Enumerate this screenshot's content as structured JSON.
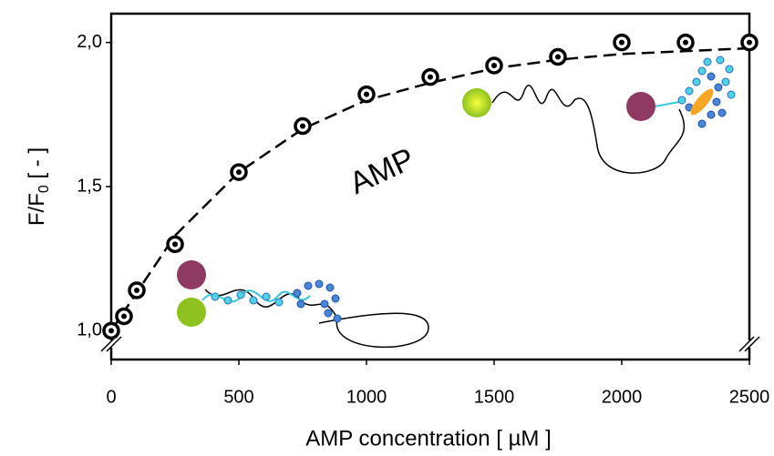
{
  "chart_data": {
    "type": "scatter",
    "xlabel": "AMP concentration [ µM ]",
    "ylabel": "F/F",
    "ylabel_subscript": "0",
    "ylabel_suffix": " [ - ]",
    "annotation": "AMP",
    "xlim": [
      0,
      2500
    ],
    "xticks": [
      0,
      500,
      1000,
      1500,
      2000,
      2500
    ],
    "ylim": [
      0.9,
      2.1
    ],
    "yticks": [
      {
        "value": 1.0,
        "label": "1,0"
      },
      {
        "value": 1.5,
        "label": "1,5"
      },
      {
        "value": 2.0,
        "label": "2,0"
      }
    ],
    "series": [
      {
        "style": "markers",
        "color": "#000000",
        "x": [
          0,
          50,
          100,
          250,
          500,
          750,
          1000,
          1250,
          1500,
          1750,
          2000,
          2250,
          2500
        ],
        "values": [
          1.0,
          1.05,
          1.14,
          1.3,
          1.55,
          1.71,
          1.82,
          1.88,
          1.92,
          1.95,
          2.0,
          2.0,
          2.0
        ]
      },
      {
        "style": "dashed",
        "color": "#000000",
        "x": [
          0,
          250,
          500,
          750,
          1000,
          1250,
          1500,
          1750,
          2000,
          2250,
          2500
        ],
        "values": [
          1.0,
          1.33,
          1.55,
          1.7,
          1.8,
          1.86,
          1.91,
          1.94,
          1.96,
          1.97,
          1.98
        ]
      }
    ]
  }
}
